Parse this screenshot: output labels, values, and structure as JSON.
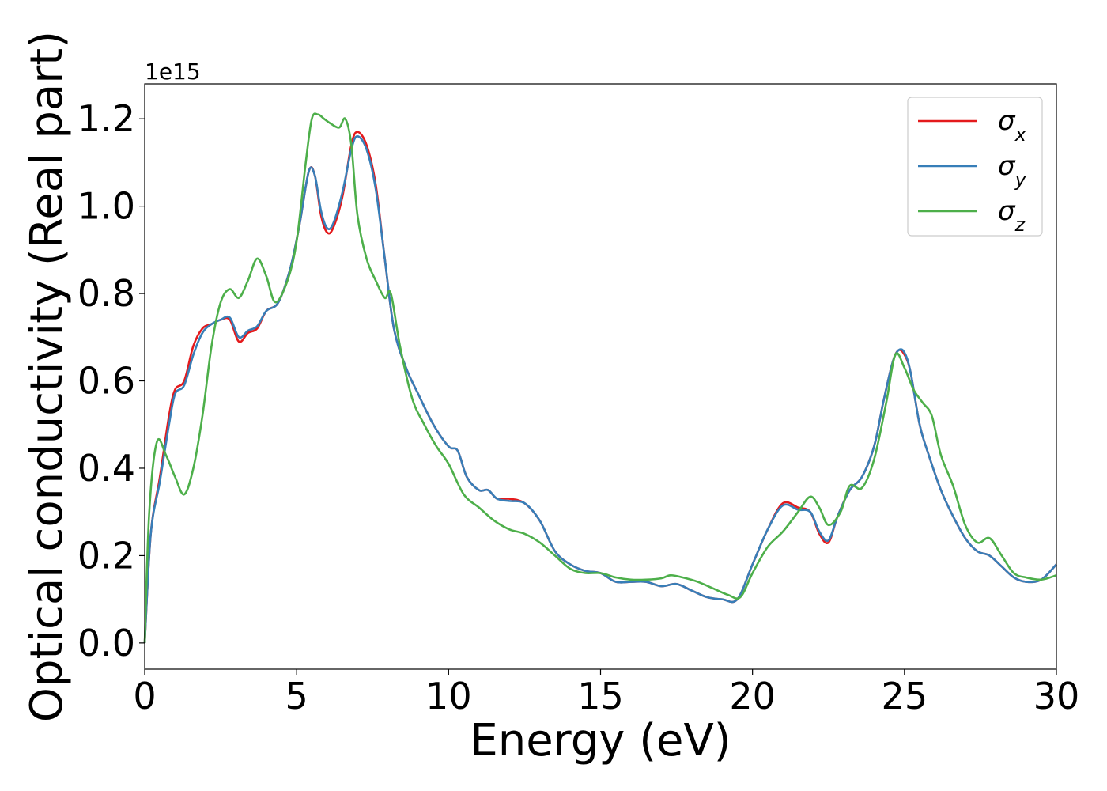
{
  "chart_data": {
    "type": "line",
    "title": "",
    "xlabel": "Energy (eV)",
    "ylabel": "Optical conductivity (Real part)",
    "y_offset_text": "1e15",
    "xlim": [
      0,
      30
    ],
    "ylim": [
      -0.06,
      1.28
    ],
    "x_ticks": [
      0,
      5,
      10,
      15,
      20,
      25,
      30
    ],
    "x_tick_labels": [
      "0",
      "5",
      "10",
      "15",
      "20",
      "25",
      "30"
    ],
    "y_ticks": [
      0.0,
      0.2,
      0.4,
      0.6,
      0.8,
      1.0,
      1.2
    ],
    "y_tick_labels": [
      "0.0",
      "0.2",
      "0.4",
      "0.6",
      "0.8",
      "1.0",
      "1.2"
    ],
    "grid": false,
    "legend_position": "top-right",
    "series": [
      {
        "name": "σ",
        "subscript": "x",
        "color": "#e41a1c",
        "x": [
          0,
          0.2,
          0.5,
          0.8,
          1.0,
          1.3,
          1.6,
          1.9,
          2.2,
          2.5,
          2.8,
          3.1,
          3.4,
          3.7,
          4.0,
          4.4,
          4.8,
          5.1,
          5.4,
          5.6,
          5.8,
          6.0,
          6.2,
          6.5,
          6.8,
          7.0,
          7.3,
          7.6,
          7.9,
          8.2,
          8.6,
          9.0,
          9.5,
          10.0,
          10.3,
          10.6,
          11.0,
          11.3,
          11.6,
          12.0,
          12.5,
          13.0,
          13.5,
          14.0,
          14.5,
          15.0,
          15.5,
          16.0,
          16.5,
          17.0,
          17.5,
          18.0,
          18.5,
          19.0,
          19.5,
          20.0,
          20.5,
          21.0,
          21.5,
          21.9,
          22.2,
          22.5,
          22.8,
          23.2,
          23.6,
          24.0,
          24.3,
          24.6,
          24.8,
          25.0,
          25.2,
          25.5,
          25.8,
          26.2,
          26.6,
          27.0,
          27.4,
          27.8,
          28.2,
          28.6,
          29.0,
          29.5,
          30.0
        ],
        "y": [
          0.0,
          0.25,
          0.38,
          0.52,
          0.58,
          0.6,
          0.68,
          0.72,
          0.73,
          0.74,
          0.74,
          0.69,
          0.71,
          0.72,
          0.76,
          0.78,
          0.86,
          0.96,
          1.08,
          1.07,
          0.98,
          0.94,
          0.95,
          1.02,
          1.14,
          1.17,
          1.14,
          1.05,
          0.88,
          0.72,
          0.63,
          0.57,
          0.5,
          0.45,
          0.44,
          0.38,
          0.35,
          0.35,
          0.33,
          0.33,
          0.32,
          0.28,
          0.21,
          0.18,
          0.165,
          0.16,
          0.14,
          0.14,
          0.14,
          0.13,
          0.135,
          0.12,
          0.105,
          0.1,
          0.1,
          0.18,
          0.26,
          0.32,
          0.31,
          0.3,
          0.25,
          0.23,
          0.29,
          0.35,
          0.38,
          0.45,
          0.55,
          0.64,
          0.67,
          0.66,
          0.62,
          0.5,
          0.43,
          0.35,
          0.29,
          0.24,
          0.21,
          0.2,
          0.175,
          0.15,
          0.14,
          0.145,
          0.18
        ]
      },
      {
        "name": "σ",
        "subscript": "y",
        "color": "#377eb8",
        "x": [
          0,
          0.2,
          0.5,
          0.8,
          1.0,
          1.3,
          1.6,
          1.9,
          2.2,
          2.5,
          2.8,
          3.1,
          3.4,
          3.7,
          4.0,
          4.4,
          4.8,
          5.1,
          5.4,
          5.6,
          5.8,
          6.0,
          6.2,
          6.5,
          6.8,
          7.0,
          7.3,
          7.6,
          7.9,
          8.2,
          8.6,
          9.0,
          9.5,
          10.0,
          10.3,
          10.6,
          11.0,
          11.3,
          11.6,
          12.0,
          12.5,
          13.0,
          13.5,
          14.0,
          14.5,
          15.0,
          15.5,
          16.0,
          16.5,
          17.0,
          17.5,
          18.0,
          18.5,
          19.0,
          19.5,
          20.0,
          20.5,
          21.0,
          21.5,
          21.9,
          22.2,
          22.5,
          22.8,
          23.2,
          23.6,
          24.0,
          24.3,
          24.6,
          24.8,
          25.0,
          25.2,
          25.5,
          25.8,
          26.2,
          26.6,
          27.0,
          27.4,
          27.8,
          28.2,
          28.6,
          29.0,
          29.5,
          30.0
        ],
        "y": [
          0.0,
          0.25,
          0.37,
          0.5,
          0.57,
          0.59,
          0.66,
          0.71,
          0.73,
          0.74,
          0.745,
          0.7,
          0.715,
          0.725,
          0.76,
          0.78,
          0.86,
          0.96,
          1.08,
          1.07,
          0.99,
          0.95,
          0.96,
          1.03,
          1.13,
          1.16,
          1.13,
          1.04,
          0.88,
          0.72,
          0.63,
          0.57,
          0.5,
          0.45,
          0.44,
          0.38,
          0.35,
          0.35,
          0.33,
          0.325,
          0.32,
          0.28,
          0.21,
          0.18,
          0.165,
          0.16,
          0.14,
          0.14,
          0.14,
          0.13,
          0.135,
          0.12,
          0.105,
          0.1,
          0.1,
          0.18,
          0.26,
          0.315,
          0.305,
          0.3,
          0.255,
          0.235,
          0.29,
          0.35,
          0.38,
          0.45,
          0.55,
          0.64,
          0.67,
          0.665,
          0.62,
          0.5,
          0.43,
          0.35,
          0.29,
          0.24,
          0.21,
          0.2,
          0.175,
          0.15,
          0.14,
          0.145,
          0.18
        ]
      },
      {
        "name": "σ",
        "subscript": "z",
        "color": "#4daf4a",
        "x": [
          0,
          0.15,
          0.4,
          0.7,
          1.0,
          1.3,
          1.6,
          1.9,
          2.2,
          2.5,
          2.8,
          3.1,
          3.4,
          3.7,
          4.0,
          4.3,
          4.7,
          5.0,
          5.3,
          5.5,
          5.7,
          5.9,
          6.1,
          6.4,
          6.6,
          6.8,
          7.0,
          7.3,
          7.6,
          7.9,
          8.1,
          8.4,
          8.8,
          9.2,
          9.6,
          10.0,
          10.5,
          11.0,
          11.5,
          12.0,
          12.5,
          13.0,
          13.5,
          14.0,
          14.5,
          15.0,
          15.5,
          16.0,
          16.5,
          17.0,
          17.3,
          17.7,
          18.2,
          18.7,
          19.2,
          19.6,
          20.0,
          20.5,
          21.0,
          21.5,
          21.9,
          22.2,
          22.5,
          22.9,
          23.2,
          23.6,
          24.0,
          24.4,
          24.7,
          25.0,
          25.3,
          25.6,
          25.9,
          26.2,
          26.6,
          27.0,
          27.4,
          27.8,
          28.2,
          28.6,
          29.0,
          29.5,
          30.0
        ],
        "y": [
          0.0,
          0.3,
          0.46,
          0.43,
          0.38,
          0.34,
          0.4,
          0.52,
          0.68,
          0.78,
          0.81,
          0.79,
          0.83,
          0.88,
          0.84,
          0.78,
          0.83,
          0.92,
          1.1,
          1.2,
          1.21,
          1.2,
          1.19,
          1.18,
          1.2,
          1.14,
          0.98,
          0.88,
          0.83,
          0.79,
          0.8,
          0.68,
          0.56,
          0.5,
          0.45,
          0.41,
          0.34,
          0.31,
          0.28,
          0.26,
          0.25,
          0.23,
          0.2,
          0.17,
          0.16,
          0.16,
          0.15,
          0.145,
          0.145,
          0.148,
          0.155,
          0.15,
          0.14,
          0.125,
          0.11,
          0.105,
          0.16,
          0.22,
          0.255,
          0.3,
          0.335,
          0.31,
          0.27,
          0.3,
          0.36,
          0.355,
          0.42,
          0.55,
          0.66,
          0.63,
          0.58,
          0.55,
          0.52,
          0.43,
          0.36,
          0.27,
          0.23,
          0.24,
          0.2,
          0.16,
          0.15,
          0.145,
          0.155
        ]
      }
    ]
  }
}
